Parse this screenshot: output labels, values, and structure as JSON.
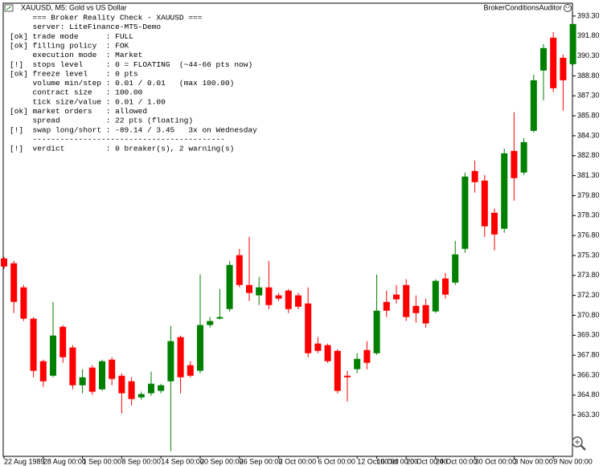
{
  "chart_data": {
    "type": "candlestick",
    "title": "XAUUSD, M5:  Gold vs US Dollar",
    "indicator": "BrokerConditionsAuditor",
    "up_color": "#008000",
    "down_color": "#ff0000",
    "ylim": [
      360.2,
      394.2
    ],
    "yticks": [
      {
        "value": 393.3,
        "label": "393.30"
      },
      {
        "value": 391.8,
        "label": "391.80"
      },
      {
        "value": 390.3,
        "label": "390.30"
      },
      {
        "value": 388.8,
        "label": "388.80"
      },
      {
        "value": 387.3,
        "label": "387.30"
      },
      {
        "value": 385.8,
        "label": "385.80"
      },
      {
        "value": 384.3,
        "label": "384.30"
      },
      {
        "value": 382.8,
        "label": "382.80"
      },
      {
        "value": 381.3,
        "label": "381.30"
      },
      {
        "value": 379.8,
        "label": "379.80"
      },
      {
        "value": 378.3,
        "label": "378.30"
      },
      {
        "value": 376.8,
        "label": "376.80"
      },
      {
        "value": 375.3,
        "label": "375.30"
      },
      {
        "value": 373.8,
        "label": "373.80"
      },
      {
        "value": 372.3,
        "label": "372.30"
      },
      {
        "value": 370.8,
        "label": "370.80"
      },
      {
        "value": 369.3,
        "label": "369.30"
      },
      {
        "value": 367.8,
        "label": "367.80"
      },
      {
        "value": 366.3,
        "label": "366.30"
      },
      {
        "value": 364.8,
        "label": "364.80"
      },
      {
        "value": 363.3,
        "label": "363.30"
      }
    ],
    "categories": [
      "22 Aug 1989",
      null,
      null,
      null,
      "28 Aug 00:00",
      null,
      null,
      null,
      "1 Sep 00:00",
      null,
      null,
      null,
      "8 Sep 00:00",
      null,
      null,
      null,
      "14 Sep 00:00",
      null,
      null,
      null,
      "20 Sep 00:00",
      null,
      null,
      null,
      "26 Sep 00:00",
      null,
      null,
      null,
      "2 Oct 00:00",
      null,
      null,
      null,
      "6 Oct 00:00",
      null,
      null,
      null,
      "12 Oct 00:00",
      null,
      "16 Oct 00:00",
      null,
      null,
      "20 Oct 00:00",
      null,
      null,
      "24 Oct 00:00",
      null,
      null,
      null,
      "30 Oct 00:00",
      null,
      null,
      null,
      "3 Nov 00:00",
      null,
      null,
      null,
      "9 Nov 00:00",
      null,
      null
    ],
    "open": [
      375.07,
      374.71,
      372.9,
      370.55,
      367.35,
      366.26,
      369.94,
      368.38,
      365.54,
      366.87,
      365.24,
      367.47,
      366.26,
      365.84,
      364.63,
      364.94,
      365.12,
      365.84,
      369.16,
      367.05,
      366.63,
      370.07,
      370.55,
      371.27,
      375.32,
      373.08,
      372.3,
      372.9,
      372.3,
      372.66,
      372.3,
      371.69,
      368.68,
      368.56,
      368.13,
      366.26,
      366.75,
      368.19,
      367.95,
      371.81,
      372.36,
      373.08,
      371.51,
      371.57,
      371.09,
      373.57,
      373.26,
      375.8,
      381.65,
      380.93,
      378.51,
      377.31,
      383.16,
      381.53,
      384.67,
      389.2,
      391.67,
      390.16,
      389.68
    ],
    "high": [
      375.19,
      374.89,
      373.08,
      370.67,
      367.47,
      371.81,
      370.07,
      368.56,
      366.75,
      367.05,
      367.47,
      367.65,
      366.44,
      366.14,
      365.06,
      366.56,
      365.66,
      370.0,
      369.28,
      367.35,
      373.87,
      370.67,
      372.78,
      374.89,
      375.8,
      376.7,
      373.69,
      374.89,
      372.48,
      372.78,
      372.48,
      372.9,
      369.16,
      368.68,
      368.25,
      366.63,
      367.95,
      368.86,
      373.87,
      372.66,
      373.08,
      373.51,
      372.3,
      372.06,
      373.51,
      373.99,
      376.4,
      381.53,
      382.44,
      381.35,
      378.82,
      383.34,
      386.06,
      384.13,
      388.89,
      391.19,
      392.09,
      390.4,
      392.7
    ],
    "low": [
      374.29,
      370.97,
      370.37,
      366.14,
      365.42,
      366.14,
      367.23,
      365.24,
      364.94,
      364.82,
      365.12,
      365.54,
      363.43,
      364.03,
      364.45,
      364.75,
      364.94,
      360.59,
      364.94,
      366.14,
      366.44,
      369.88,
      370.49,
      371.09,
      372.9,
      371.88,
      371.57,
      371.27,
      371.88,
      370.97,
      371.27,
      367.65,
      367.95,
      367.23,
      364.94,
      364.33,
      366.44,
      366.75,
      367.83,
      370.67,
      371.69,
      370.37,
      370.25,
      369.88,
      370.97,
      372.06,
      373.08,
      375.5,
      380.02,
      376.7,
      375.68,
      377.01,
      379.42,
      381.35,
      384.55,
      386.96,
      387.57,
      386.18,
      389.56
    ],
    "close": [
      374.47,
      371.81,
      370.55,
      366.63,
      365.84,
      369.28,
      367.65,
      365.54,
      366.14,
      365.06,
      367.35,
      366.02,
      364.94,
      364.51,
      364.88,
      365.66,
      365.54,
      368.86,
      366.14,
      366.26,
      370.07,
      370.37,
      370.67,
      374.59,
      373.08,
      372.48,
      372.9,
      371.57,
      372.06,
      371.27,
      371.45,
      367.95,
      368.13,
      367.35,
      365.12,
      366.14,
      367.53,
      367.23,
      371.15,
      371.15,
      372.0,
      370.67,
      370.97,
      370.19,
      373.39,
      372.36,
      375.38,
      381.23,
      380.81,
      377.49,
      376.88,
      382.98,
      381.11,
      383.82,
      388.47,
      390.89,
      387.87,
      388.47,
      392.7
    ],
    "annotations": [
      {
        "text": "     === Broker Reality Check - XAUUSD ===",
        "color": "#000080"
      },
      {
        "text": "     server: LiteFinance-MT5-Demo",
        "color": "#000000"
      },
      {
        "text": "[ok] trade mode      : FULL",
        "color": "#2e8b57"
      },
      {
        "text": "[ok] filling policy  : FOK",
        "color": "#2e8b57"
      },
      {
        "text": "     execution mode  : Market",
        "color": "#000000"
      },
      {
        "text": "[!]  stops level     : 0 = FLOATING  (~44-66 pts now)",
        "color": "#d4960f"
      },
      {
        "text": "[ok] freeze level    : 0 pts",
        "color": "#2e8b57"
      },
      {
        "text": "     volume min/step : 0.01 / 0.01   (max 100.00)",
        "color": "#000000"
      },
      {
        "text": "     contract size   : 100.00",
        "color": "#000000"
      },
      {
        "text": "     tick size/value : 0.01 / 1.00",
        "color": "#000000"
      },
      {
        "text": "[ok] market orders   : allowed",
        "color": "#2e8b57"
      },
      {
        "text": "     spread          : 22 pts (floating)",
        "color": "#000000"
      },
      {
        "text": "[!]  swap long/short : -89.14 / 3.45   3x on Wednesday",
        "color": "#d4960f"
      },
      {
        "text": "     ------------------------------------------",
        "color": "#000000"
      },
      {
        "text": "[!]  verdict         : 0 breaker(s), 2 warning(s)",
        "color": "#d4960f"
      }
    ]
  }
}
